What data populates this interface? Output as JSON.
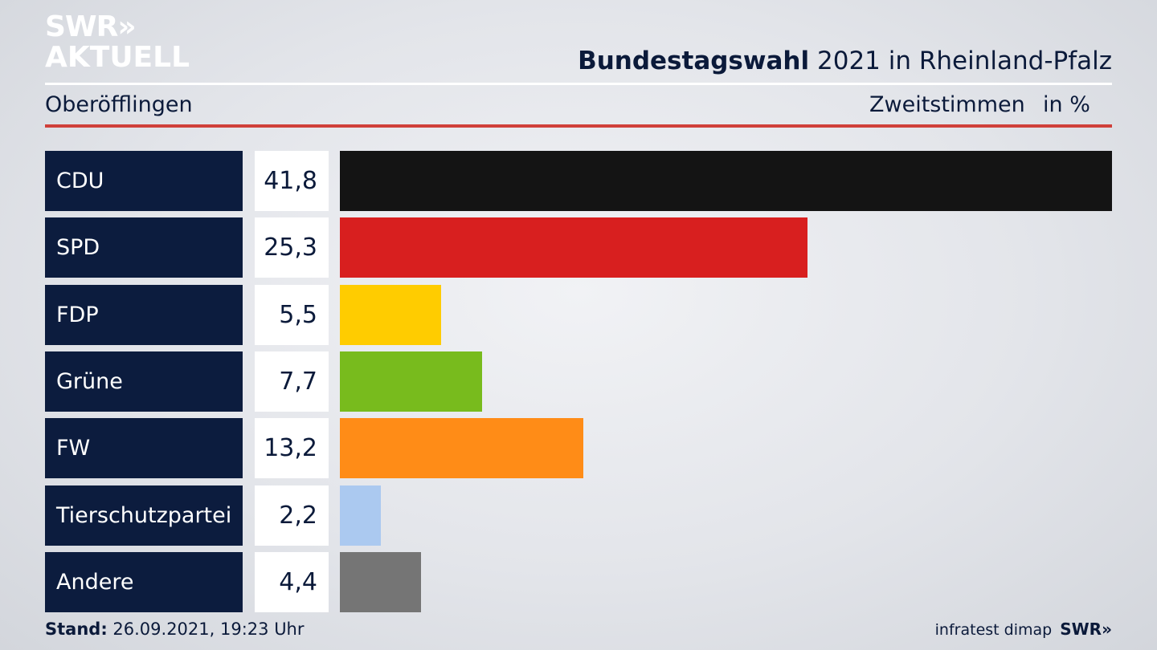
{
  "branding": {
    "logo_line1": "SWR»",
    "logo_line2": "AKTUELL",
    "footer_logo": "SWR»",
    "source": "infratest dimap"
  },
  "header": {
    "title_bold": "Bundestagswahl",
    "title_rest": "2021 in Rheinland-Pfalz",
    "place": "Oberöfflingen",
    "measure": "Zweitstimmen",
    "unit": "in %"
  },
  "footer": {
    "stand_label": "Stand:",
    "stand_value": "26.09.2021, 19:23 Uhr"
  },
  "colors": {
    "accent_red_rule": "#d0403a",
    "label_bg": "#0c1c3e"
  },
  "chart_data": {
    "type": "bar",
    "orientation": "horizontal",
    "categories": [
      "CDU",
      "SPD",
      "FDP",
      "Grüne",
      "FW",
      "Tierschutzpartei",
      "Andere"
    ],
    "values": [
      41.8,
      25.3,
      5.5,
      7.7,
      13.2,
      2.2,
      4.4
    ],
    "value_labels": [
      "41,8",
      "25,3",
      "5,5",
      "7,7",
      "13,2",
      "2,2",
      "4,4"
    ],
    "colors": [
      "#141414",
      "#d81f1f",
      "#ffcc00",
      "#78bb1d",
      "#ff8c17",
      "#abc9f0",
      "#757575"
    ],
    "xlim": [
      0,
      41.8
    ]
  }
}
